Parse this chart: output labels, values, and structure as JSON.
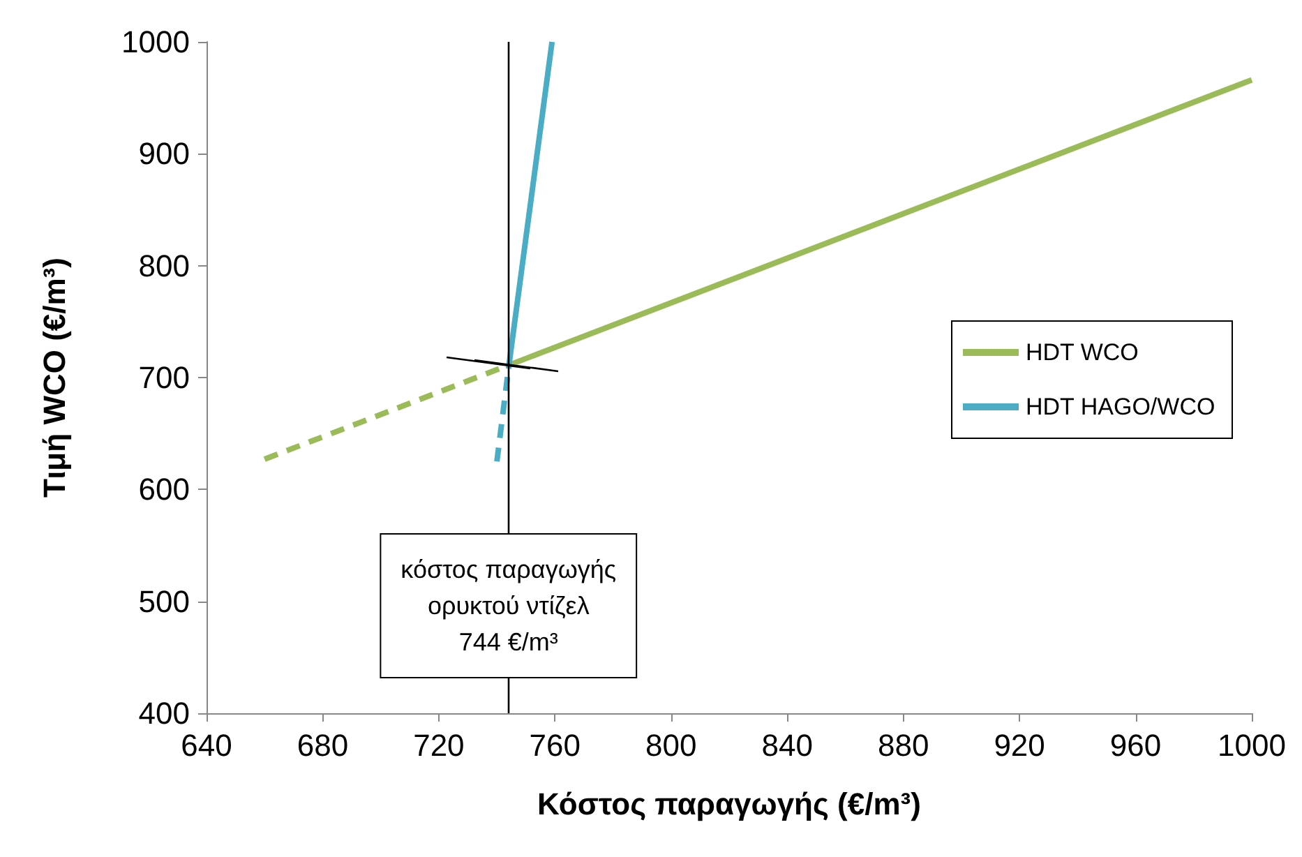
{
  "chart_data": {
    "type": "line",
    "xlabel": "Κόστος παραγωγής (€/m³)",
    "ylabel": "Τιμή WCO (€/m³)",
    "xlim": [
      640,
      1000
    ],
    "xticks": [
      640,
      680,
      720,
      760,
      800,
      840,
      880,
      920,
      960,
      1000
    ],
    "ylim": [
      400,
      1000
    ],
    "yticks": [
      400,
      500,
      600,
      700,
      800,
      900,
      1000
    ],
    "grid": false,
    "legend": "right",
    "marker": "none",
    "series": [
      {
        "name": "HDT WCO",
        "color": "#9bbb59",
        "x": [
          744,
          1000
        ],
        "values": [
          711,
          966
        ],
        "line_style": "solid"
      },
      {
        "color": "#9bbb59",
        "x": [
          660,
          744
        ],
        "values": [
          627,
          711
        ],
        "line_style": "dashed"
      },
      {
        "name": "HDT HAGO/WCO",
        "color": "#4bacc6",
        "x": [
          744,
          759
        ],
        "values": [
          708,
          1000
        ],
        "line_style": "solid"
      },
      {
        "color": "#4bacc6",
        "x": [
          740,
          744
        ],
        "values": [
          625,
          708
        ],
        "line_style": "dashed"
      }
    ],
    "ref_lines": [
      {
        "axis": "x",
        "value": 744,
        "label": "κόστος παραγωγής\nορυκτού ντίζελ\n744 €/m³",
        "color": "#000000"
      }
    ]
  }
}
